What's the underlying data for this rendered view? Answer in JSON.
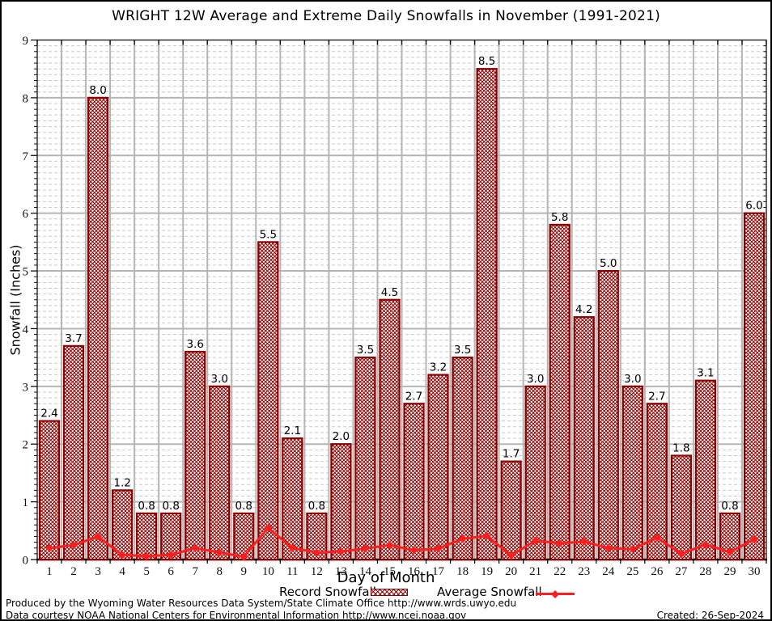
{
  "chart_data": {
    "type": "bar",
    "title": "WRIGHT 12W Average and Extreme Daily Snowfalls in November (1991-2021)",
    "xlabel": "Day of Month",
    "ylabel": "Snowfall (Inches)",
    "ylim": [
      0,
      9
    ],
    "ytick_step": 1,
    "minor_grid_step": 0.1,
    "grid": "on",
    "legend_position": "bottom",
    "categories": [
      "1",
      "2",
      "3",
      "4",
      "5",
      "6",
      "7",
      "8",
      "9",
      "10",
      "11",
      "12",
      "13",
      "14",
      "15",
      "16",
      "17",
      "18",
      "19",
      "20",
      "21",
      "22",
      "23",
      "24",
      "25",
      "26",
      "27",
      "28",
      "29",
      "30"
    ],
    "series": [
      {
        "name": "Record Snowfall",
        "type": "bar",
        "values": [
          2.4,
          3.7,
          8.0,
          1.2,
          0.8,
          0.8,
          3.6,
          3.0,
          0.8,
          5.5,
          2.1,
          0.8,
          2.0,
          3.5,
          4.5,
          2.7,
          3.2,
          3.5,
          8.5,
          1.7,
          3.0,
          5.8,
          4.2,
          5.0,
          3.0,
          2.7,
          1.8,
          3.1,
          0.8,
          6.0
        ]
      },
      {
        "name": "Average Snowfall",
        "type": "line",
        "values": [
          0.2,
          0.25,
          0.4,
          0.08,
          0.06,
          0.08,
          0.2,
          0.12,
          0.05,
          0.55,
          0.2,
          0.12,
          0.14,
          0.19,
          0.25,
          0.16,
          0.19,
          0.36,
          0.41,
          0.07,
          0.33,
          0.28,
          0.31,
          0.2,
          0.18,
          0.38,
          0.1,
          0.26,
          0.13,
          0.35
        ]
      }
    ],
    "colors": {
      "bar_edge": "#8b0000",
      "bar_hatch": "#8b0000",
      "line": "#ff1e1e",
      "grid_major": "#b5b5b5",
      "grid_minor": "#c9c9c9",
      "axis": "#000000"
    }
  },
  "legend": {
    "record_label": "Record Snowfall",
    "average_label": "Average Snowfall"
  },
  "footer": {
    "line1": "Produced by the Wyoming Water Resources Data System/State Climate Office http://www.wrds.uwyo.edu",
    "line2": "Data courtesy NOAA National Centers for Environmental Information http://www.ncei.noaa.gov",
    "created": "Created: 26-Sep-2024"
  }
}
